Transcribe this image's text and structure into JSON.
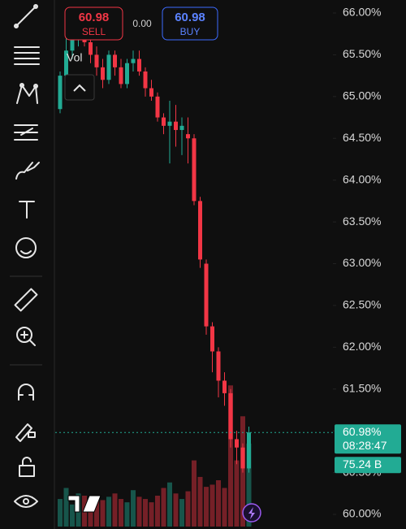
{
  "order_panel": {
    "sell_price": "60.98",
    "sell_label": "SELL",
    "spread": "0.00",
    "buy_price": "60.98",
    "buy_label": "BUY"
  },
  "chart_data": {
    "type": "candlestick",
    "indicator_label": "Vol",
    "open": [
      64.85,
      65.25,
      65.55,
      65.7,
      65.8,
      65.65,
      65.5,
      65.35,
      65.2,
      65.5,
      65.35,
      65.15,
      65.4,
      65.45,
      65.3,
      65.1,
      65.0,
      64.75,
      64.65,
      64.7,
      64.6,
      64.55,
      64.5,
      63.75,
      63.0,
      62.25,
      61.95,
      61.6,
      61.45,
      60.9,
      60.8,
      60.55
    ],
    "high": [
      65.3,
      65.7,
      65.8,
      65.95,
      65.9,
      65.75,
      65.6,
      65.45,
      65.55,
      65.55,
      65.45,
      65.45,
      65.55,
      65.55,
      65.35,
      65.2,
      65.05,
      64.8,
      64.95,
      64.9,
      64.75,
      64.75,
      64.55,
      63.8,
      63.05,
      62.3,
      62.0,
      61.7,
      61.5,
      61.0,
      60.85,
      61.05
    ],
    "low": [
      64.8,
      65.2,
      65.45,
      65.6,
      65.6,
      65.4,
      65.25,
      65.1,
      65.15,
      65.25,
      65.1,
      65.1,
      65.3,
      65.25,
      65.0,
      64.95,
      64.7,
      64.55,
      64.2,
      64.4,
      64.3,
      64.2,
      63.7,
      62.95,
      62.15,
      61.7,
      61.4,
      61.3,
      60.8,
      60.6,
      60.5,
      60.5
    ],
    "close": [
      65.25,
      65.55,
      65.7,
      65.8,
      65.65,
      65.5,
      65.35,
      65.2,
      65.5,
      65.35,
      65.15,
      65.4,
      65.45,
      65.3,
      65.1,
      65.0,
      64.75,
      64.65,
      64.7,
      64.6,
      64.65,
      64.5,
      63.75,
      63.05,
      62.25,
      61.95,
      61.6,
      61.45,
      60.9,
      60.8,
      60.55,
      60.98
    ],
    "up_color": "#22ab94",
    "down_color": "#f23645",
    "volume": {
      "values": [
        25,
        35,
        20,
        30,
        28,
        22,
        26,
        24,
        27,
        30,
        25,
        22,
        33,
        27,
        25,
        22,
        28,
        35,
        40,
        30,
        25,
        32,
        60,
        45,
        36,
        38,
        42,
        35,
        128,
        60,
        100,
        75.24
      ],
      "last_label": "75.24 B"
    },
    "ylim": [
      60,
      66
    ],
    "yticks": [
      {
        "value": 60,
        "label": "60.00%"
      },
      {
        "value": 60.5,
        "label": "60.50%"
      },
      {
        "value": 61,
        "label": "61.00%"
      },
      {
        "value": 61.5,
        "label": "61.50%"
      },
      {
        "value": 62,
        "label": "62.00%"
      },
      {
        "value": 62.5,
        "label": "62.50%"
      },
      {
        "value": 63,
        "label": "63.00%"
      },
      {
        "value": 63.5,
        "label": "63.50%"
      },
      {
        "value": 64,
        "label": "64.00%"
      },
      {
        "value": 64.5,
        "label": "64.50%"
      },
      {
        "value": 65,
        "label": "65.00%"
      },
      {
        "value": 65.5,
        "label": "65.50%"
      },
      {
        "value": 66,
        "label": "66.00%"
      }
    ],
    "y2lim": [
      0,
      140
    ],
    "last_price": {
      "value": 60.98,
      "label": "60.98%"
    },
    "countdown": "08:28:47"
  }
}
